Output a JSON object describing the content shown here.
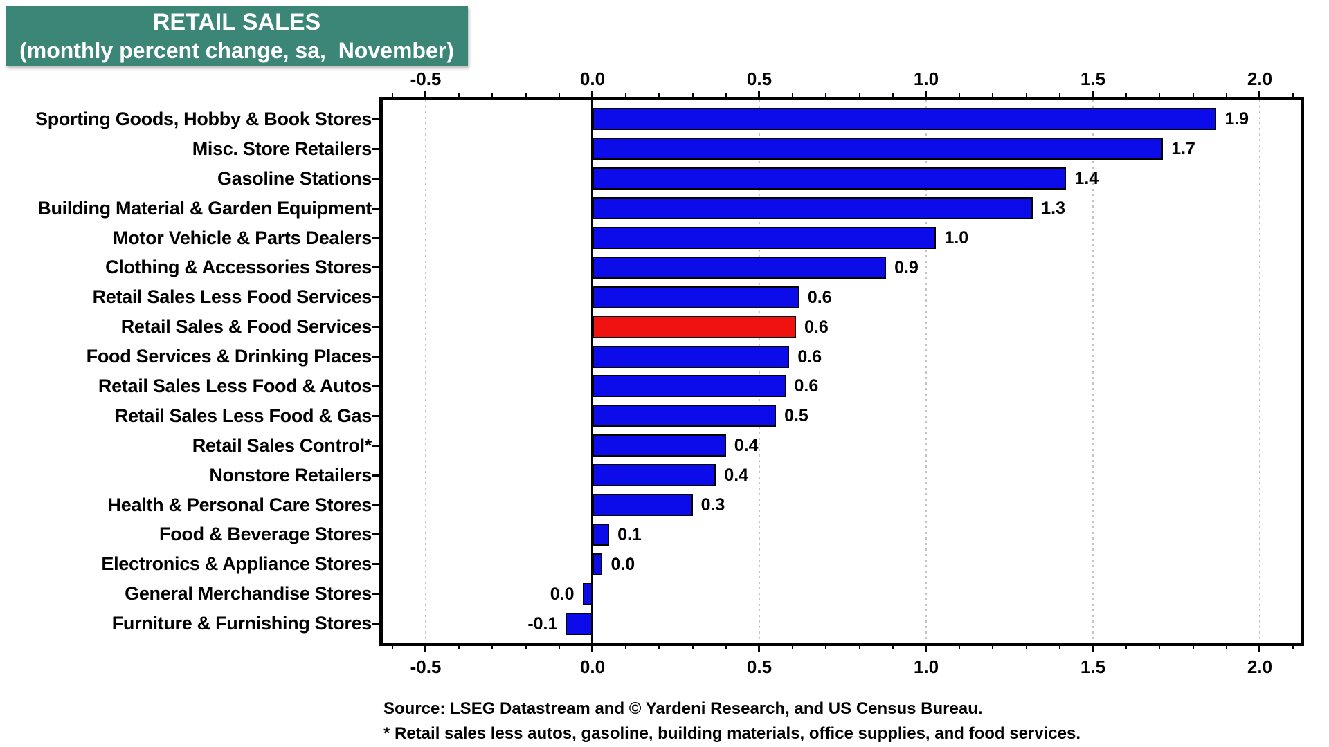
{
  "title": {
    "line1": "RETAIL SALES",
    "line2": "(monthly percent change, sa,  November)"
  },
  "footer": {
    "line1": "Source: LSEG Datastream and © Yardeni Research, and US Census Bureau.",
    "line2": "* Retail sales less autos, gasoline, building materials, office supplies, and food services."
  },
  "colors": {
    "title_bg": "#3B8677",
    "title_text": "#FFFFFF",
    "bar_blue": "#0C0CEB",
    "bar_red": "#F01111",
    "grid_dots": "#C4C4C4",
    "axis": "#000000"
  },
  "chart_data": {
    "type": "bar",
    "orientation": "horizontal",
    "title": "RETAIL SALES",
    "subtitle": "(monthly percent change, sa,  November)",
    "unit": "monthly percent change, seasonally adjusted",
    "xlim": [
      -0.63,
      2.12
    ],
    "x_ticks": [
      -0.5,
      0.0,
      0.5,
      1.0,
      1.5,
      2.0
    ],
    "minor_tick_step": 0.1,
    "grid": "vertical dotted gray lines at major ticks; solid black line at zero",
    "legend_position": "none",
    "axis_labels_position": "top and bottom",
    "categories": [
      "Sporting Goods, Hobby & Book Stores",
      "Misc. Store Retailers",
      "Gasoline Stations",
      "Building Material & Garden Equipment",
      "Motor Vehicle & Parts Dealers",
      "Clothing & Accessories Stores",
      "Retail Sales Less Food Services",
      "Retail Sales & Food Services",
      "Food Services & Drinking Places",
      "Retail Sales Less Food & Autos",
      "Retail Sales Less Food & Gas",
      "Retail Sales Control*",
      "Nonstore Retailers",
      "Health & Personal Care Stores",
      "Food & Beverage Stores",
      "Electronics & Appliance Stores",
      "General Merchandise Stores",
      "Furniture & Furnishing Stores"
    ],
    "values": [
      1.9,
      1.7,
      1.4,
      1.3,
      1.0,
      0.9,
      0.6,
      0.6,
      0.6,
      0.6,
      0.5,
      0.4,
      0.4,
      0.3,
      0.1,
      0.0,
      0.0,
      -0.1
    ],
    "bar_draw_lengths": [
      1.87,
      1.71,
      1.42,
      1.32,
      1.03,
      0.88,
      0.62,
      0.61,
      0.59,
      0.58,
      0.55,
      0.4,
      0.37,
      0.3,
      0.05,
      0.03,
      -0.03,
      -0.08
    ],
    "highlight": {
      "index": 7,
      "category": "Retail Sales & Food Services",
      "color": "#F01111"
    },
    "bar_color": "#0C0CEB"
  }
}
